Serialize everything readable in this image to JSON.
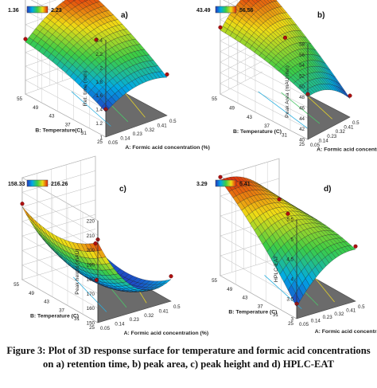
{
  "caption": {
    "line1": "Figure 3: Plot of 3D response surface for temperature and formic acid concentrations",
    "line2": "on a) retention time, b) peak area, c) peak height and d) HPLC-EAT"
  },
  "chart_data": [
    {
      "type": "surface",
      "panel": "a)",
      "zlabel": "Ret. time (min)",
      "xlabel": "A: Formic acid concentration (%)",
      "ylabel": "B: Temperature(C)",
      "colorbar": {
        "min_label": "1.36",
        "max_label": "2.23",
        "low_color": "#2233bb",
        "high_color": "#dd2200"
      },
      "x_ticks": [
        "0.05",
        "0.14",
        "0.23",
        "0.32",
        "0.41",
        "0.5"
      ],
      "y_ticks": [
        "25",
        "31",
        "37",
        "43",
        "49",
        "55"
      ],
      "z_ticks": [
        "1",
        "1.2",
        "1.4",
        "1.6",
        "1.8",
        "2",
        "2.2",
        "2.4"
      ],
      "xlim": [
        0.05,
        0.5
      ],
      "ylim": [
        25,
        55
      ],
      "zlim": [
        1,
        2.4
      ],
      "corner_values": {
        "x_min_y_min": 1.36,
        "x_max_y_min": 1.55,
        "x_min_y_max": 1.75,
        "x_max_y_max": 2.2
      },
      "curvature": 0.12
    },
    {
      "type": "surface",
      "panel": "b)",
      "zlabel": "Peak Area (mAU/min)",
      "xlabel": "A: Formic acid concentration (%)",
      "ylabel": "B: Temperature (C)",
      "colorbar": {
        "min_label": "43.49",
        "max_label": "56.56",
        "low_color": "#2233bb",
        "high_color": "#dd2200"
      },
      "x_ticks": [
        "0.05",
        "0.14",
        "0.23",
        "0.32",
        "0.41",
        "0.5"
      ],
      "y_ticks": [
        "25",
        "31",
        "37",
        "43",
        "49",
        "55"
      ],
      "z_ticks": [
        "40",
        "42",
        "44",
        "46",
        "48",
        "50",
        "52",
        "54",
        "56",
        "58"
      ],
      "xlim": [
        0.05,
        0.5
      ],
      "ylim": [
        25,
        55
      ],
      "zlim": [
        40,
        58
      ],
      "corner_values": {
        "x_min_y_min": 48,
        "x_max_y_min": 43.5,
        "x_min_y_max": 52,
        "x_max_y_max": 56.5
      },
      "curvature": 1.5
    },
    {
      "type": "surface",
      "panel": "c)",
      "zlabel": "Peak height (mAU)",
      "xlabel": "A: Formic acid concentration (%)",
      "ylabel": "B: Temperature (C)",
      "colorbar": {
        "min_label": "158.33",
        "max_label": "216.26",
        "low_color": "#2233bb",
        "high_color": "#dd2200"
      },
      "x_ticks": [
        "0.05",
        "0.14",
        "0.23",
        "0.32",
        "0.41",
        "0.5"
      ],
      "y_ticks": [
        "25",
        "31",
        "37",
        "43",
        "49",
        "55"
      ],
      "z_ticks": [
        "150",
        "160",
        "170",
        "180",
        "190",
        "200",
        "210",
        "220"
      ],
      "xlim": [
        0.05,
        0.5
      ],
      "ylim": [
        25,
        55
      ],
      "zlim": [
        150,
        220
      ],
      "corner_values": {
        "x_min_y_min": 205,
        "x_max_y_min": 165,
        "x_min_y_max": 200,
        "x_max_y_max": 158
      },
      "curvature": -18
    },
    {
      "type": "surface",
      "panel": "d)",
      "zlabel": "HPLC-EAT",
      "xlabel": "A: Formic acid concentration (%)",
      "ylabel": "B: Temperature (C)",
      "colorbar": {
        "min_label": "3.29",
        "max_label": "5.41",
        "low_color": "#2233bb",
        "high_color": "#dd2200"
      },
      "x_ticks": [
        "0.05",
        "0.14",
        "0.23",
        "0.32",
        "0.41",
        "0.5"
      ],
      "y_ticks": [
        "25",
        "31",
        "37",
        "43",
        "49",
        "55"
      ],
      "z_ticks": [
        "3",
        "3.5",
        "4",
        "4.5",
        "5",
        "5.5"
      ],
      "xlim": [
        0.05,
        0.5
      ],
      "ylim": [
        25,
        55
      ],
      "zlim": [
        3,
        5.5
      ],
      "corner_values": {
        "x_min_y_min": 3.3,
        "x_max_y_min": 4.3,
        "x_min_y_max": 5.4,
        "x_max_y_max": 4.4
      },
      "curvature": 0.3
    }
  ]
}
